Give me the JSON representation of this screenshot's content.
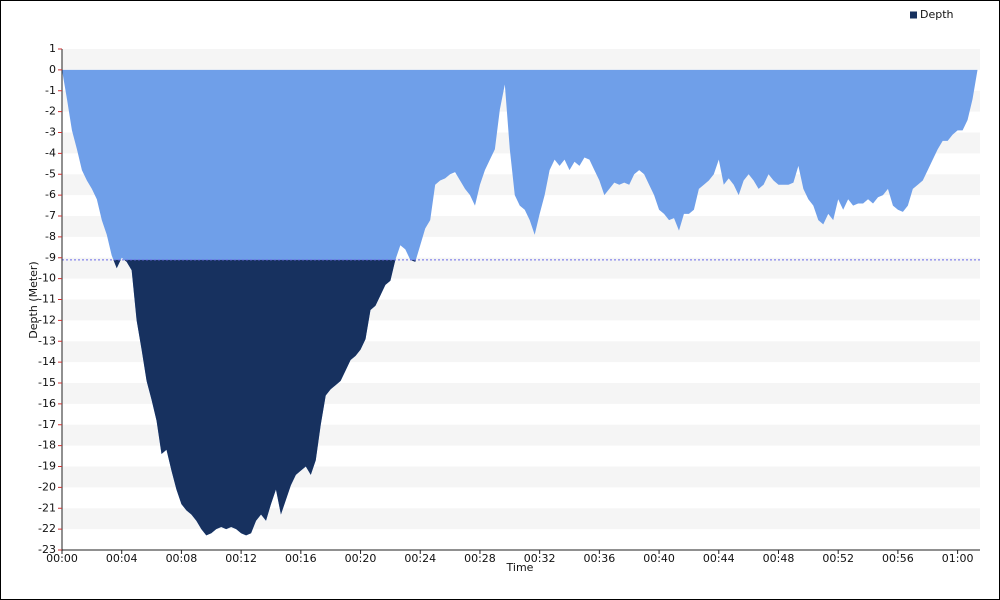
{
  "chart_data": {
    "type": "area",
    "x_label": "Time",
    "y_label": "Depth (Meter)",
    "legend": "top-right",
    "threshold": -9.1,
    "shallow_color": "#6f9fe9",
    "xlim": [
      0,
      3690
    ],
    "ylim": [
      -23,
      1
    ],
    "xticks": [
      {
        "value": 0,
        "label": "00:00"
      },
      {
        "value": 240,
        "label": "00:04"
      },
      {
        "value": 480,
        "label": "00:08"
      },
      {
        "value": 720,
        "label": "00:12"
      },
      {
        "value": 960,
        "label": "00:16"
      },
      {
        "value": 1200,
        "label": "00:20"
      },
      {
        "value": 1440,
        "label": "00:24"
      },
      {
        "value": 1680,
        "label": "00:28"
      },
      {
        "value": 1920,
        "label": "00:32"
      },
      {
        "value": 2160,
        "label": "00:36"
      },
      {
        "value": 2400,
        "label": "00:40"
      },
      {
        "value": 2640,
        "label": "00:44"
      },
      {
        "value": 2880,
        "label": "00:48"
      },
      {
        "value": 3120,
        "label": "00:52"
      },
      {
        "value": 3360,
        "label": "00:56"
      },
      {
        "value": 3600,
        "label": "01:00"
      }
    ],
    "yticks": [
      1,
      0,
      -1,
      -2,
      -3,
      -4,
      -5,
      -6,
      -7,
      -8,
      -9,
      -10,
      -11,
      -12,
      -13,
      -14,
      -15,
      -16,
      -17,
      -18,
      -19,
      -20,
      -21,
      -22,
      -23
    ],
    "x": [
      0,
      20,
      40,
      60,
      80,
      100,
      120,
      140,
      160,
      180,
      200,
      220,
      240,
      260,
      280,
      300,
      320,
      340,
      360,
      380,
      400,
      420,
      440,
      460,
      480,
      500,
      520,
      540,
      560,
      580,
      600,
      620,
      640,
      660,
      680,
      700,
      720,
      740,
      760,
      780,
      800,
      820,
      840,
      860,
      880,
      900,
      920,
      940,
      960,
      980,
      1000,
      1020,
      1040,
      1060,
      1080,
      1100,
      1120,
      1140,
      1160,
      1180,
      1200,
      1220,
      1240,
      1260,
      1280,
      1300,
      1320,
      1340,
      1360,
      1380,
      1400,
      1420,
      1440,
      1460,
      1480,
      1500,
      1520,
      1540,
      1560,
      1580,
      1600,
      1620,
      1640,
      1660,
      1680,
      1700,
      1720,
      1740,
      1760,
      1780,
      1800,
      1820,
      1840,
      1860,
      1880,
      1900,
      1920,
      1940,
      1960,
      1980,
      2000,
      2020,
      2040,
      2060,
      2080,
      2100,
      2120,
      2140,
      2160,
      2180,
      2200,
      2220,
      2240,
      2260,
      2280,
      2300,
      2320,
      2340,
      2360,
      2380,
      2400,
      2420,
      2440,
      2460,
      2480,
      2500,
      2520,
      2540,
      2560,
      2580,
      2600,
      2620,
      2640,
      2660,
      2680,
      2700,
      2720,
      2740,
      2760,
      2780,
      2800,
      2820,
      2840,
      2860,
      2880,
      2900,
      2920,
      2940,
      2960,
      2980,
      3000,
      3020,
      3040,
      3060,
      3080,
      3100,
      3120,
      3140,
      3160,
      3180,
      3200,
      3220,
      3240,
      3260,
      3280,
      3300,
      3320,
      3340,
      3360,
      3380,
      3400,
      3420,
      3440,
      3460,
      3480,
      3500,
      3520,
      3540,
      3560,
      3580,
      3600,
      3620,
      3640,
      3660,
      3680
    ],
    "series": [
      {
        "name": "Depth",
        "color": "#17315f",
        "values": [
          0,
          -1.4,
          -2.9,
          -3.8,
          -4.8,
          -5.3,
          -5.7,
          -6.2,
          -7.2,
          -7.9,
          -8.9,
          -9.5,
          -9,
          -9.2,
          -9.6,
          -12,
          -13.4,
          -14.9,
          -15.8,
          -16.8,
          -18.4,
          -18.2,
          -19.2,
          -20.1,
          -20.8,
          -21.1,
          -21.3,
          -21.6,
          -22,
          -22.3,
          -22.2,
          -22,
          -21.9,
          -22,
          -21.9,
          -22,
          -22.2,
          -22.3,
          -22.2,
          -21.6,
          -21.3,
          -21.6,
          -20.8,
          -20.1,
          -21.3,
          -20.6,
          -19.9,
          -19.4,
          -19.2,
          -19,
          -19.4,
          -18.7,
          -17,
          -15.6,
          -15.3,
          -15.1,
          -14.9,
          -14.4,
          -13.9,
          -13.7,
          -13.4,
          -12.9,
          -11.5,
          -11.3,
          -10.8,
          -10.3,
          -10.1,
          -9.1,
          -8.4,
          -8.6,
          -9.1,
          -9.2,
          -8.4,
          -7.6,
          -7.2,
          -5.5,
          -5.3,
          -5.2,
          -5,
          -4.9,
          -5.3,
          -5.7,
          -6,
          -6.5,
          -5.5,
          -4.8,
          -4.3,
          -3.8,
          -1.9,
          -0.7,
          -3.8,
          -6,
          -6.5,
          -6.7,
          -7.2,
          -7.9,
          -6.9,
          -6,
          -4.8,
          -4.3,
          -4.6,
          -4.3,
          -4.8,
          -4.4,
          -4.6,
          -4.2,
          -4.3,
          -4.8,
          -5.3,
          -6,
          -5.7,
          -5.4,
          -5.5,
          -5.4,
          -5.5,
          -5,
          -4.8,
          -5,
          -5.5,
          -6,
          -6.7,
          -6.9,
          -7.2,
          -7.1,
          -7.7,
          -6.9,
          -6.9,
          -6.7,
          -5.7,
          -5.5,
          -5.3,
          -5,
          -4.3,
          -5.5,
          -5.2,
          -5.5,
          -6,
          -5.3,
          -5,
          -5.3,
          -5.7,
          -5.5,
          -5,
          -5.3,
          -5.5,
          -5.5,
          -5.5,
          -5.4,
          -4.6,
          -5.7,
          -6.2,
          -6.5,
          -7.2,
          -7.4,
          -6.9,
          -7.2,
          -6.2,
          -6.7,
          -6.2,
          -6.5,
          -6.4,
          -6.4,
          -6.2,
          -6.4,
          -6.1,
          -6,
          -5.7,
          -6.5,
          -6.7,
          -6.8,
          -6.5,
          -5.7,
          -5.5,
          -5.3,
          -4.8,
          -4.3,
          -3.8,
          -3.4,
          -3.4,
          -3.1,
          -2.9,
          -2.9,
          -2.4,
          -1.4,
          0
        ]
      }
    ]
  }
}
